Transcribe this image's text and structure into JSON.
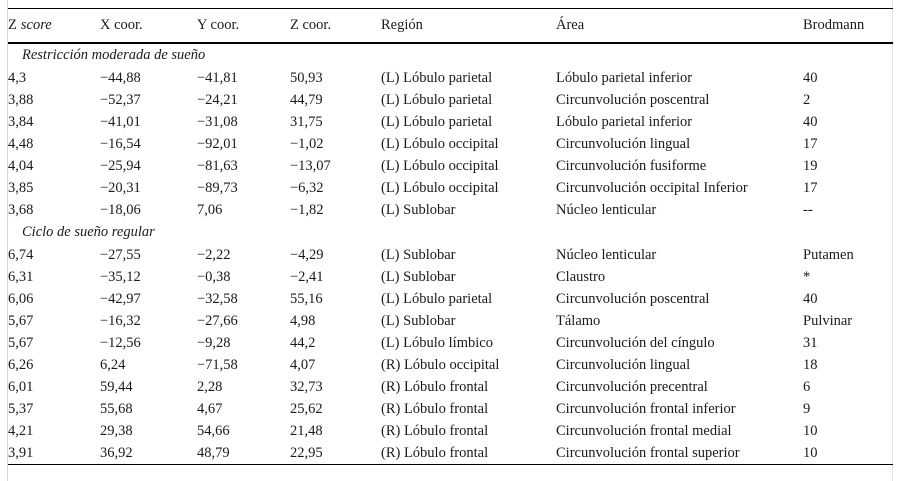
{
  "colors": {
    "text": "#1a1a1a",
    "rule": "#000000",
    "page_edge": "#d6d6d6",
    "background": "#ffffff"
  },
  "table": {
    "header": {
      "z_score": {
        "normal": "Z",
        "italic": "score"
      },
      "x_coor": "X coor.",
      "y_coor": "Y coor.",
      "z_coor": "Z coor.",
      "region": "Región",
      "area": "Área",
      "brodmann": "Brodmann"
    },
    "sections": [
      {
        "title": "Restricción moderada de sueño",
        "rows": [
          [
            "4,3",
            "−44,88",
            "−41,81",
            "50,93",
            "(L) Lóbulo parietal",
            "Lóbulo parietal inferior",
            "40"
          ],
          [
            "3,88",
            "−52,37",
            "−24,21",
            "44,79",
            "(L) Lóbulo parietal",
            "Circunvolución poscentral",
            "2"
          ],
          [
            "3,84",
            "−41,01",
            "−31,08",
            "31,75",
            "(L) Lóbulo parietal",
            "Lóbulo parietal inferior",
            "40"
          ],
          [
            "4,48",
            "−16,54",
            "−92,01",
            "−1,02",
            "(L) Lóbulo occipital",
            "Circunvolución lingual",
            "17"
          ],
          [
            "4,04",
            "−25,94",
            "−81,63",
            "−13,07",
            "(L) Lóbulo occipital",
            "Circunvolución fusiforme",
            "19"
          ],
          [
            "3,85",
            "−20,31",
            "−89,73",
            "−6,32",
            "(L) Lóbulo occipital",
            "Circunvolución occipital Inferior",
            "17"
          ],
          [
            "3,68",
            "−18,06",
            "7,06",
            "−1,82",
            "(L) Sublobar",
            "Núcleo lenticular",
            "--"
          ]
        ]
      },
      {
        "title": "Ciclo de sueño regular",
        "rows": [
          [
            "6,74",
            "−27,55",
            "−2,22",
            "−4,29",
            "(L) Sublobar",
            "Núcleo lenticular",
            "Putamen"
          ],
          [
            "6,31",
            "−35,12",
            "−0,38",
            "−2,41",
            "(L) Sublobar",
            "Claustro",
            "*"
          ],
          [
            "6,06",
            "−42,97",
            "−32,58",
            "55,16",
            "(L) Lóbulo parietal",
            "Circunvolución poscentral",
            "40"
          ],
          [
            "5,67",
            "−16,32",
            "−27,66",
            "4,98",
            "(L) Sublobar",
            "Tálamo",
            "Pulvinar"
          ],
          [
            "5,67",
            "−12,56",
            "−9,28",
            "44,2",
            "(L) Lóbulo límbico",
            "Circunvolución del cíngulo",
            "31"
          ],
          [
            "6,26",
            "6,24",
            "−71,58",
            "4,07",
            "(R) Lóbulo occipital",
            "Circunvolución lingual",
            "18"
          ],
          [
            "6,01",
            "59,44",
            "2,28",
            "32,73",
            "(R) Lóbulo frontal",
            "Circunvolución precentral",
            "6"
          ],
          [
            "5,37",
            "55,68",
            "4,67",
            "25,62",
            "(R) Lóbulo frontal",
            "Circunvolución frontal inferior",
            "9"
          ],
          [
            "4,21",
            "29,38",
            "54,66",
            "21,48",
            "(R) Lóbulo frontal",
            "Circunvolución frontal medial",
            "10"
          ],
          [
            "3,91",
            "36,92",
            "48,79",
            "22,95",
            "(R) Lóbulo frontal",
            "Circunvolución frontal superior",
            "10"
          ]
        ]
      }
    ]
  }
}
